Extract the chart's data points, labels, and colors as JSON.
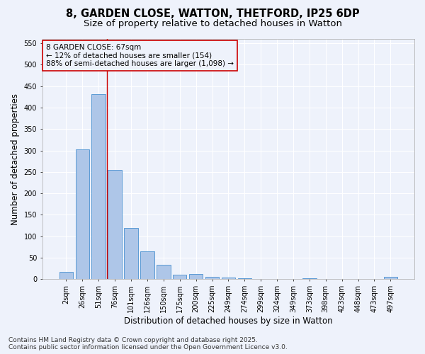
{
  "title_line1": "8, GARDEN CLOSE, WATTON, THETFORD, IP25 6DP",
  "title_line2": "Size of property relative to detached houses in Watton",
  "xlabel": "Distribution of detached houses by size in Watton",
  "ylabel": "Number of detached properties",
  "categories": [
    "2sqm",
    "26sqm",
    "51sqm",
    "76sqm",
    "101sqm",
    "126sqm",
    "150sqm",
    "175sqm",
    "200sqm",
    "225sqm",
    "249sqm",
    "274sqm",
    "299sqm",
    "324sqm",
    "349sqm",
    "373sqm",
    "398sqm",
    "423sqm",
    "448sqm",
    "473sqm",
    "497sqm"
  ],
  "values": [
    17,
    302,
    432,
    255,
    119,
    65,
    34,
    10,
    12,
    5,
    3,
    2,
    1,
    0,
    0,
    2,
    0,
    0,
    0,
    0,
    5
  ],
  "bar_color": "#aec6e8",
  "bar_edge_color": "#5b9bd5",
  "vline_color": "#cc0000",
  "vline_x_index": 2.5,
  "annotation_box_text": "8 GARDEN CLOSE: 67sqm\n← 12% of detached houses are smaller (154)\n88% of semi-detached houses are larger (1,098) →",
  "annotation_box_color": "#cc0000",
  "ylim": [
    0,
    560
  ],
  "yticks": [
    0,
    50,
    100,
    150,
    200,
    250,
    300,
    350,
    400,
    450,
    500,
    550
  ],
  "bg_color": "#eef2fb",
  "grid_color": "#ffffff",
  "footer_text": "Contains HM Land Registry data © Crown copyright and database right 2025.\nContains public sector information licensed under the Open Government Licence v3.0.",
  "title_fontsize": 10.5,
  "subtitle_fontsize": 9.5,
  "axis_label_fontsize": 8.5,
  "tick_fontsize": 7,
  "annotation_fontsize": 7.5,
  "footer_fontsize": 6.5
}
